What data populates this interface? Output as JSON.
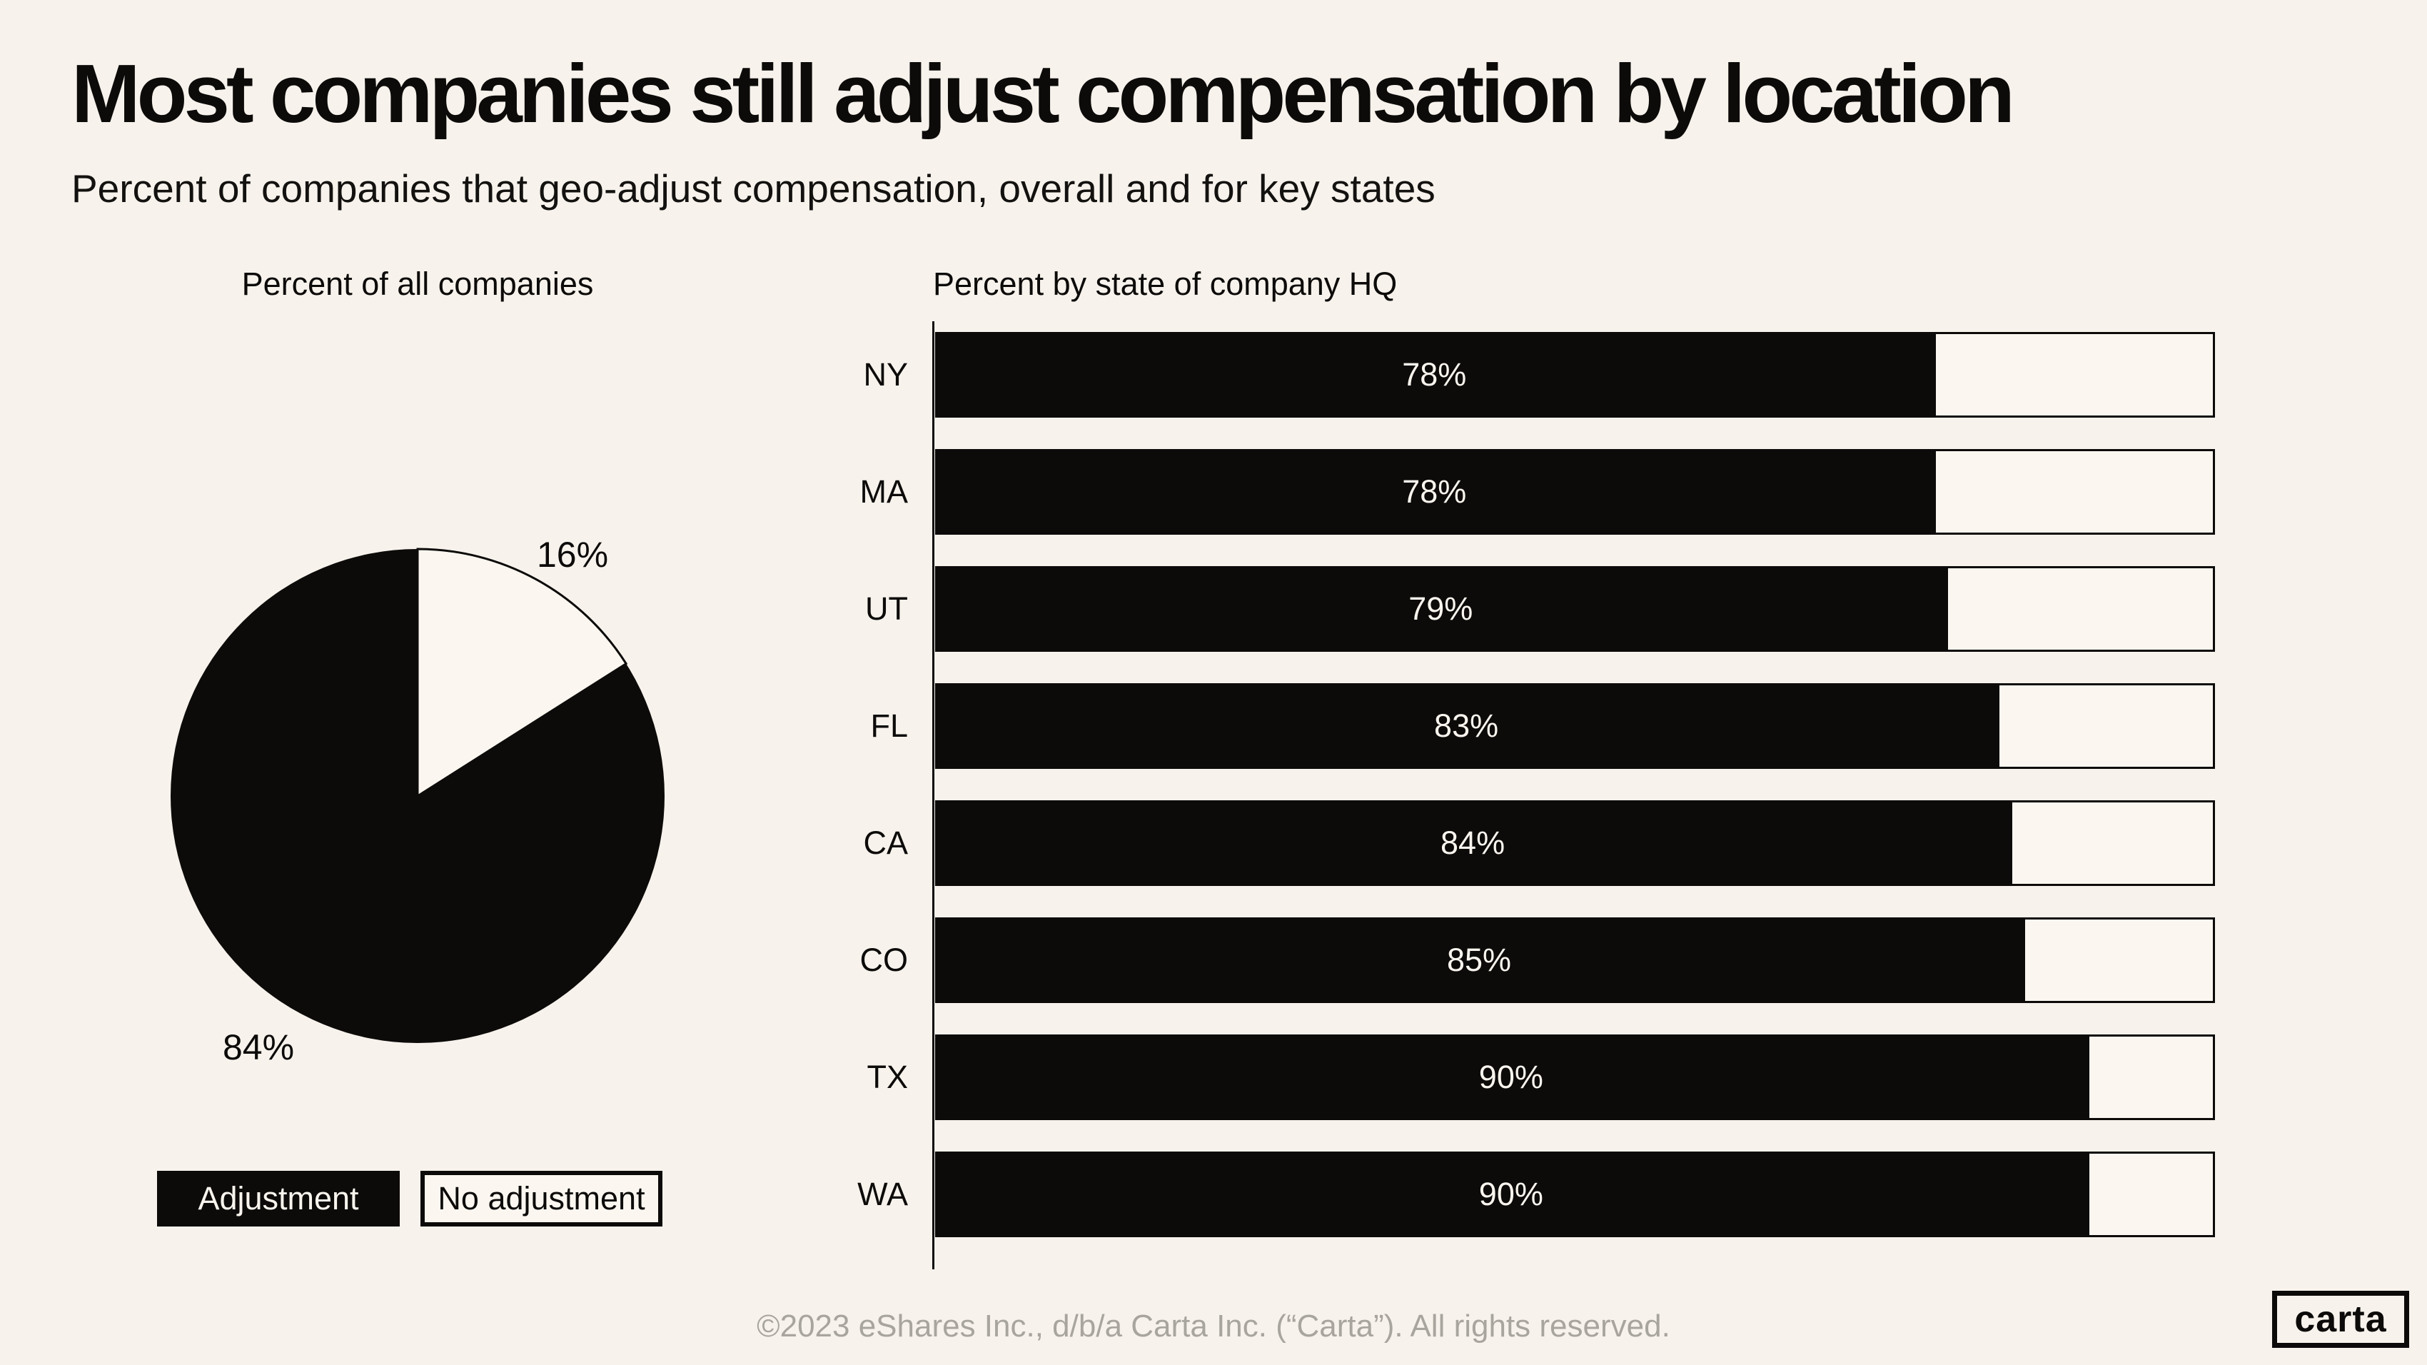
{
  "page": {
    "title": "Most companies still adjust compensation by location",
    "subtitle": "Percent of companies that geo-adjust compensation, overall and for key states",
    "footer": "©2023 eShares Inc., d/b/a Carta Inc. (“Carta”). All rights reserved.",
    "brand_logo": "carta",
    "background_color": "#f7f3ec"
  },
  "colors": {
    "ink_black": "#0d0b0a",
    "cream_fill": "#fbf7f0",
    "bar_value_text": "#f9f5ee",
    "footer_gray": "#a8a49e"
  },
  "pie_section": {
    "title": "Percent of all companies"
  },
  "bar_section": {
    "title": "Percent by state of company HQ"
  },
  "legend": {
    "adjustment_label": "Adjustment",
    "no_adjustment_label": "No adjustment"
  },
  "chart_data": [
    {
      "type": "pie",
      "title": "Percent of all companies",
      "start_angle": "top",
      "direction": "clockwise",
      "slices": [
        {
          "label": "Adjustment",
          "value": 84,
          "color": "#0d0b0a",
          "data_label": "84%"
        },
        {
          "label": "No adjustment",
          "value": 16,
          "color": "#fbf7f0",
          "data_label": "16%"
        }
      ],
      "labels": [
        "84%",
        "16%"
      ]
    },
    {
      "type": "bar",
      "orientation": "horizontal",
      "title": "Percent by state of company HQ",
      "categories": [
        "NY",
        "MA",
        "UT",
        "FL",
        "CA",
        "CO",
        "TX",
        "WA"
      ],
      "values": [
        78,
        78,
        79,
        83,
        84,
        85,
        90,
        90
      ],
      "value_labels": [
        "78%",
        "78%",
        "79%",
        "83%",
        "84%",
        "85%",
        "90%",
        "90%"
      ],
      "xlim": [
        0,
        100
      ],
      "grid": false,
      "series_label": "Adjustment",
      "remainder_label": "No adjustment",
      "legend_position": "bottom-left"
    }
  ]
}
